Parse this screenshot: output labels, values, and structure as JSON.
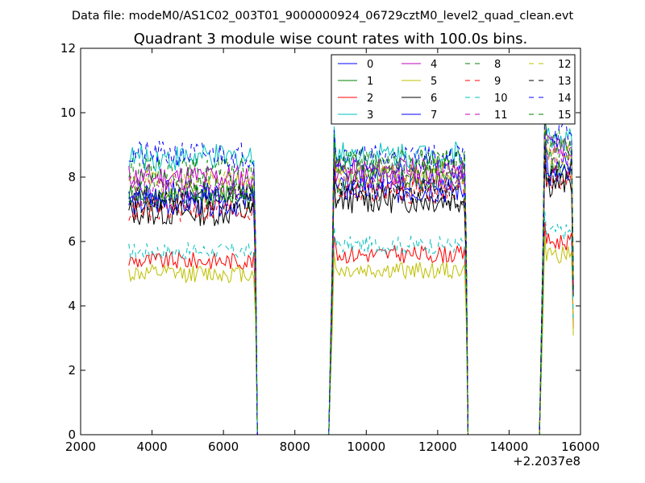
{
  "chart_data": {
    "type": "line",
    "supertitle": "Data file: modeM0/AS1C02_003T01_9000000924_06729cztM0_level2_quad_clean.evt",
    "title": "Quadrant 3 module wise count rates with 100.0s bins.",
    "xlabel": "",
    "ylabel": "",
    "x_offset_label": "+2.2037e8",
    "xlim": [
      2000,
      16000
    ],
    "ylim": [
      0,
      12
    ],
    "xticks": [
      2000,
      4000,
      6000,
      8000,
      10000,
      12000,
      14000,
      16000
    ],
    "yticks": [
      0,
      2,
      4,
      6,
      8,
      10,
      12
    ],
    "grid": false,
    "legend_position": "top-right",
    "legend_columns": 4,
    "segments": [
      {
        "start": 3350,
        "end": 6850
      },
      {
        "start": 9050,
        "end": 12750
      },
      {
        "start": 14950,
        "end": 15750
      }
    ],
    "dropouts": [
      [
        6950,
        8950
      ],
      [
        12850,
        14850
      ]
    ],
    "series": [
      {
        "name": "0",
        "color": "#0000ff",
        "dash": "solid",
        "levels": [
          7.5,
          8.0,
          8.4
        ]
      },
      {
        "name": "1",
        "color": "#008000",
        "dash": "solid",
        "levels": [
          7.4,
          7.9,
          8.3
        ]
      },
      {
        "name": "2",
        "color": "#ff0000",
        "dash": "solid",
        "levels": [
          5.4,
          5.6,
          6.0
        ]
      },
      {
        "name": "3",
        "color": "#00bfbf",
        "dash": "solid",
        "levels": [
          8.6,
          8.7,
          9.2
        ]
      },
      {
        "name": "4",
        "color": "#bf00bf",
        "dash": "solid",
        "levels": [
          8.0,
          8.2,
          9.0
        ]
      },
      {
        "name": "5",
        "color": "#bfbf00",
        "dash": "solid",
        "levels": [
          5.0,
          5.1,
          5.6
        ]
      },
      {
        "name": "6",
        "color": "#000000",
        "dash": "solid",
        "levels": [
          6.9,
          7.3,
          7.8
        ]
      },
      {
        "name": "7",
        "color": "#0000ff",
        "dash": "solid",
        "levels": [
          7.2,
          7.6,
          8.0
        ]
      },
      {
        "name": "8",
        "color": "#008000",
        "dash": "dashed",
        "levels": [
          8.2,
          8.5,
          9.1
        ]
      },
      {
        "name": "9",
        "color": "#ff0000",
        "dash": "dashed",
        "levels": [
          7.0,
          7.6,
          8.0
        ]
      },
      {
        "name": "10",
        "color": "#00bfbf",
        "dash": "dashed",
        "levels": [
          5.7,
          5.9,
          6.3
        ]
      },
      {
        "name": "11",
        "color": "#bf00bf",
        "dash": "dashed",
        "levels": [
          7.7,
          8.0,
          8.6
        ]
      },
      {
        "name": "12",
        "color": "#bfbf00",
        "dash": "dashed",
        "levels": [
          7.8,
          8.1,
          8.7
        ]
      },
      {
        "name": "13",
        "color": "#000000",
        "dash": "dashed",
        "levels": [
          7.3,
          7.5,
          8.2
        ]
      },
      {
        "name": "14",
        "color": "#0000ff",
        "dash": "dashed",
        "levels": [
          8.7,
          8.6,
          9.3
        ]
      },
      {
        "name": "15",
        "color": "#008000",
        "dash": "dashed",
        "levels": [
          7.6,
          8.4,
          8.9
        ]
      }
    ]
  }
}
